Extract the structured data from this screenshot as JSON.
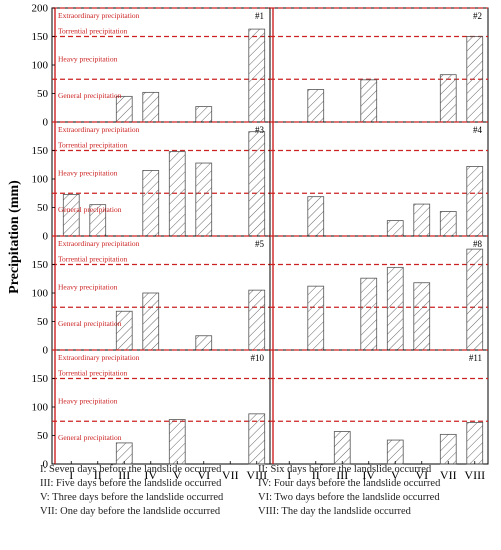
{
  "chart_data": {
    "type": "bar",
    "ylabel": "Precipitation (mm)",
    "ylim": [
      0,
      200
    ],
    "yticks": [
      0,
      50,
      100,
      150,
      200
    ],
    "categories": [
      "I",
      "II",
      "III",
      "IV",
      "V",
      "VI",
      "VII",
      "VIII"
    ],
    "thresholds": [
      {
        "name": "Extraordinary precipitation",
        "value": 200
      },
      {
        "name": "Torrential precipitation",
        "value": 150
      },
      {
        "name": "Heavy precipitation",
        "value": 75
      },
      {
        "name": "General precipitation",
        "value": 25
      }
    ],
    "colors": {
      "threshold": "#cc2222",
      "zero_line": "#cc2222",
      "bar_hatch": "#555555",
      "frame": "#000000",
      "label_text": "#cc2222"
    },
    "panels": [
      {
        "id": "#1",
        "values": [
          0,
          0,
          45,
          52,
          0,
          27,
          0,
          163
        ]
      },
      {
        "id": "#2",
        "values": [
          0,
          57,
          0,
          74,
          0,
          0,
          83,
          150
        ]
      },
      {
        "id": "#3",
        "values": [
          73,
          55,
          0,
          115,
          148,
          128,
          0,
          183
        ]
      },
      {
        "id": "#4",
        "values": [
          0,
          69,
          0,
          0,
          27,
          56,
          43,
          122
        ]
      },
      {
        "id": "#5",
        "values": [
          0,
          0,
          68,
          100,
          0,
          25,
          0,
          105
        ]
      },
      {
        "id": "#8",
        "values": [
          0,
          112,
          0,
          126,
          145,
          118,
          0,
          177
        ]
      },
      {
        "id": "#10",
        "values": [
          0,
          0,
          37,
          0,
          78,
          0,
          0,
          88
        ]
      },
      {
        "id": "#11",
        "values": [
          0,
          0,
          57,
          0,
          42,
          0,
          52,
          73
        ]
      }
    ],
    "legend": [
      "I: Seven days before the landslide occurred",
      "II: Six days before the landslide occurred",
      "III: Five days before the landslide occurred",
      "IV: Four days before the landslide occurred",
      "V: Three days before the landslide occurred",
      "VI: Two days before the landslide occurred",
      "VII: One day before the landslide occurred",
      "VIII: The day the landslide occurred"
    ]
  }
}
